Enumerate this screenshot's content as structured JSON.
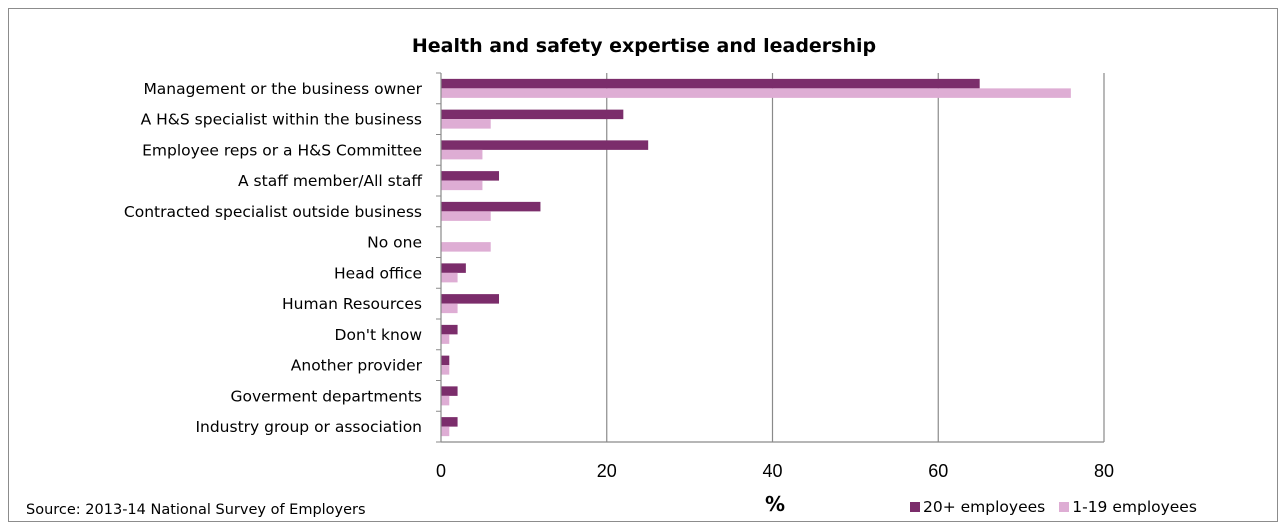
{
  "chart_data": {
    "type": "bar",
    "orientation": "horizontal",
    "title": "Health and safety expertise and leadership",
    "xlabel": "%",
    "ylabel": "",
    "xlim": [
      0,
      80
    ],
    "xticks": [
      "0",
      "20",
      "40",
      "60",
      "80"
    ],
    "grid": "vertical",
    "legend_position": "bottom-right",
    "categories": [
      "Management or the business owner",
      "A H&S specialist within the business",
      "Employee reps or a H&S Committee",
      "A staff member/All staff",
      "Contracted specialist outside business",
      "No one",
      "Head office",
      "Human Resources",
      "Don't know",
      "Another provider",
      "Goverment departments",
      "Industry group or association"
    ],
    "series": [
      {
        "name": "20+ employees",
        "color": "#7b2d6b",
        "values": [
          65,
          22,
          25,
          7,
          12,
          0,
          3,
          7,
          2,
          1,
          2,
          2
        ]
      },
      {
        "name": "1-19 employees",
        "color": "#deadd4",
        "values": [
          76,
          6,
          5,
          5,
          6,
          6,
          2,
          2,
          1,
          1,
          1,
          1
        ]
      }
    ]
  },
  "source": "Source: 2013-14 National Survey of Employers"
}
